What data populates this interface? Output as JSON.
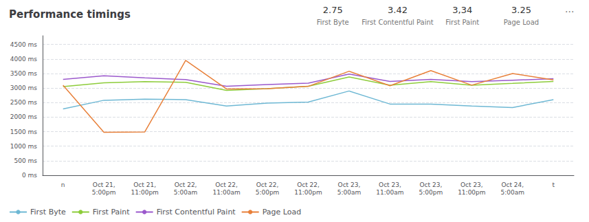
{
  "chart_data": {
    "type": "line",
    "title": "Performance timings",
    "annotations": [
      "2.75",
      "First Byte",
      "3.42",
      "First Contentful Paint",
      "3,34",
      "First Paint",
      "3.25",
      "Page Load",
      "···"
    ],
    "categories": [
      "n",
      "Oct 21,\n5:00pm",
      "Oct 21,\n11:00pm",
      "Oct 22,\n5:00am",
      "Oct 22,\n11:00am",
      "Oct 22,\n5:00pm",
      "Oct 22,\n11:00pm",
      "Oct 23,\n5:00am",
      "Oct 23,\n11:00am",
      "Oct 23,\n5:00pm",
      "Oct 23,\n11:00pm",
      "Oct 24,\n5:00am",
      "t"
    ],
    "series": [
      {
        "name": "First Byte",
        "color": "#6eb8d4",
        "values": [
          2280,
          2580,
          2620,
          2600,
          2380,
          2480,
          2520,
          2900,
          2450,
          2450,
          2380,
          2330,
          2600
        ]
      },
      {
        "name": "First Paint",
        "color": "#8dcc3a",
        "values": [
          3050,
          3180,
          3220,
          3200,
          2920,
          2980,
          3060,
          3380,
          3100,
          3220,
          3100,
          3160,
          3230
        ]
      },
      {
        "name": "First Contentful Paint",
        "color": "#9b59cc",
        "values": [
          3300,
          3420,
          3350,
          3290,
          3060,
          3120,
          3170,
          3480,
          3230,
          3300,
          3220,
          3270,
          3320
        ]
      },
      {
        "name": "Page Load",
        "color": "#e8803a",
        "values": [
          3100,
          1480,
          1490,
          3950,
          2970,
          2980,
          3060,
          3580,
          3080,
          3600,
          3100,
          3500,
          3280
        ]
      }
    ],
    "ylim": [
      0,
      4800
    ],
    "yticks": [
      {
        "value": 0,
        "label": "0 ms"
      },
      {
        "value": 500,
        "label": "500 ms"
      },
      {
        "value": 1000,
        "label": "1000 ms"
      },
      {
        "value": 1500,
        "label": "1500 ms"
      },
      {
        "value": 2000,
        "label": "2000 ms"
      },
      {
        "value": 2500,
        "label": "2500 ms"
      },
      {
        "value": 3000,
        "label": "3000 ms"
      },
      {
        "value": 3500,
        "label": "3500 ms"
      },
      {
        "value": 4000,
        "label": "4000 ms"
      },
      {
        "value": 4500,
        "label": "4500 ms"
      }
    ],
    "grid": true,
    "legend": "bottom"
  }
}
